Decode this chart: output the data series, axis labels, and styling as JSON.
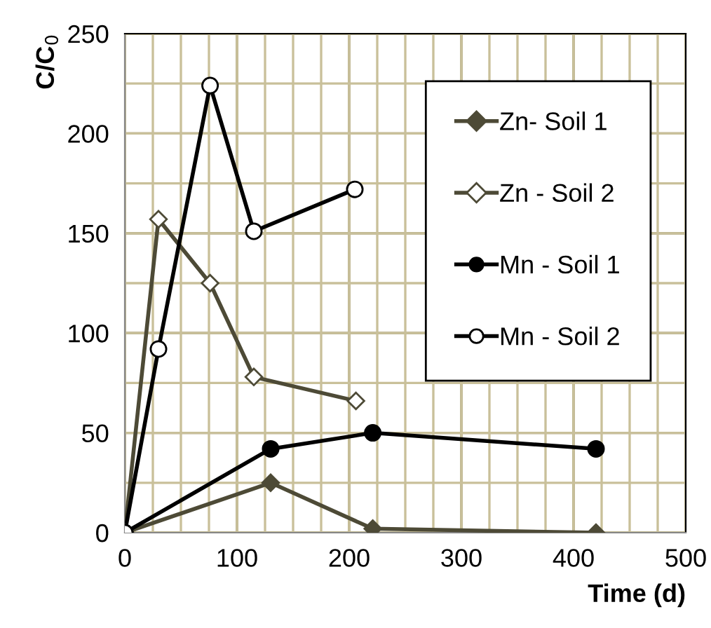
{
  "chart_data": {
    "type": "line",
    "xlabel": "Time (d)",
    "ylabel": "C/C$_{0}$",
    "xlim": [
      0,
      500
    ],
    "ylim": [
      0,
      250
    ],
    "xticks": [
      0,
      100,
      200,
      300,
      400,
      500
    ],
    "yticks": [
      0,
      50,
      100,
      150,
      200,
      250
    ],
    "grid": true,
    "legend": "top right",
    "line_style": "solid",
    "series": [
      {
        "name": "Zn- Soil 1",
        "color": "#4d4a36",
        "marker": "diamond",
        "x": [
          0,
          130,
          221,
          420
        ],
        "values": [
          0,
          25,
          2,
          0
        ]
      },
      {
        "name": "Zn - Soil 2",
        "color": "#4d4a36",
        "marker": "diamond",
        "x": [
          0,
          30,
          76,
          115,
          206
        ],
        "values": [
          0,
          157,
          125,
          78,
          66
        ]
      },
      {
        "name": "Mn - Soil 1",
        "color": "#000000",
        "marker": "circle",
        "x": [
          0,
          130,
          221,
          420
        ],
        "values": [
          0,
          42,
          50,
          42
        ]
      },
      {
        "name": "Mn - Soil 2",
        "color": "#000000",
        "marker": "circle",
        "x": [
          0,
          30,
          76,
          115,
          205
        ],
        "values": [
          0,
          92,
          224,
          151,
          172
        ]
      }
    ]
  }
}
